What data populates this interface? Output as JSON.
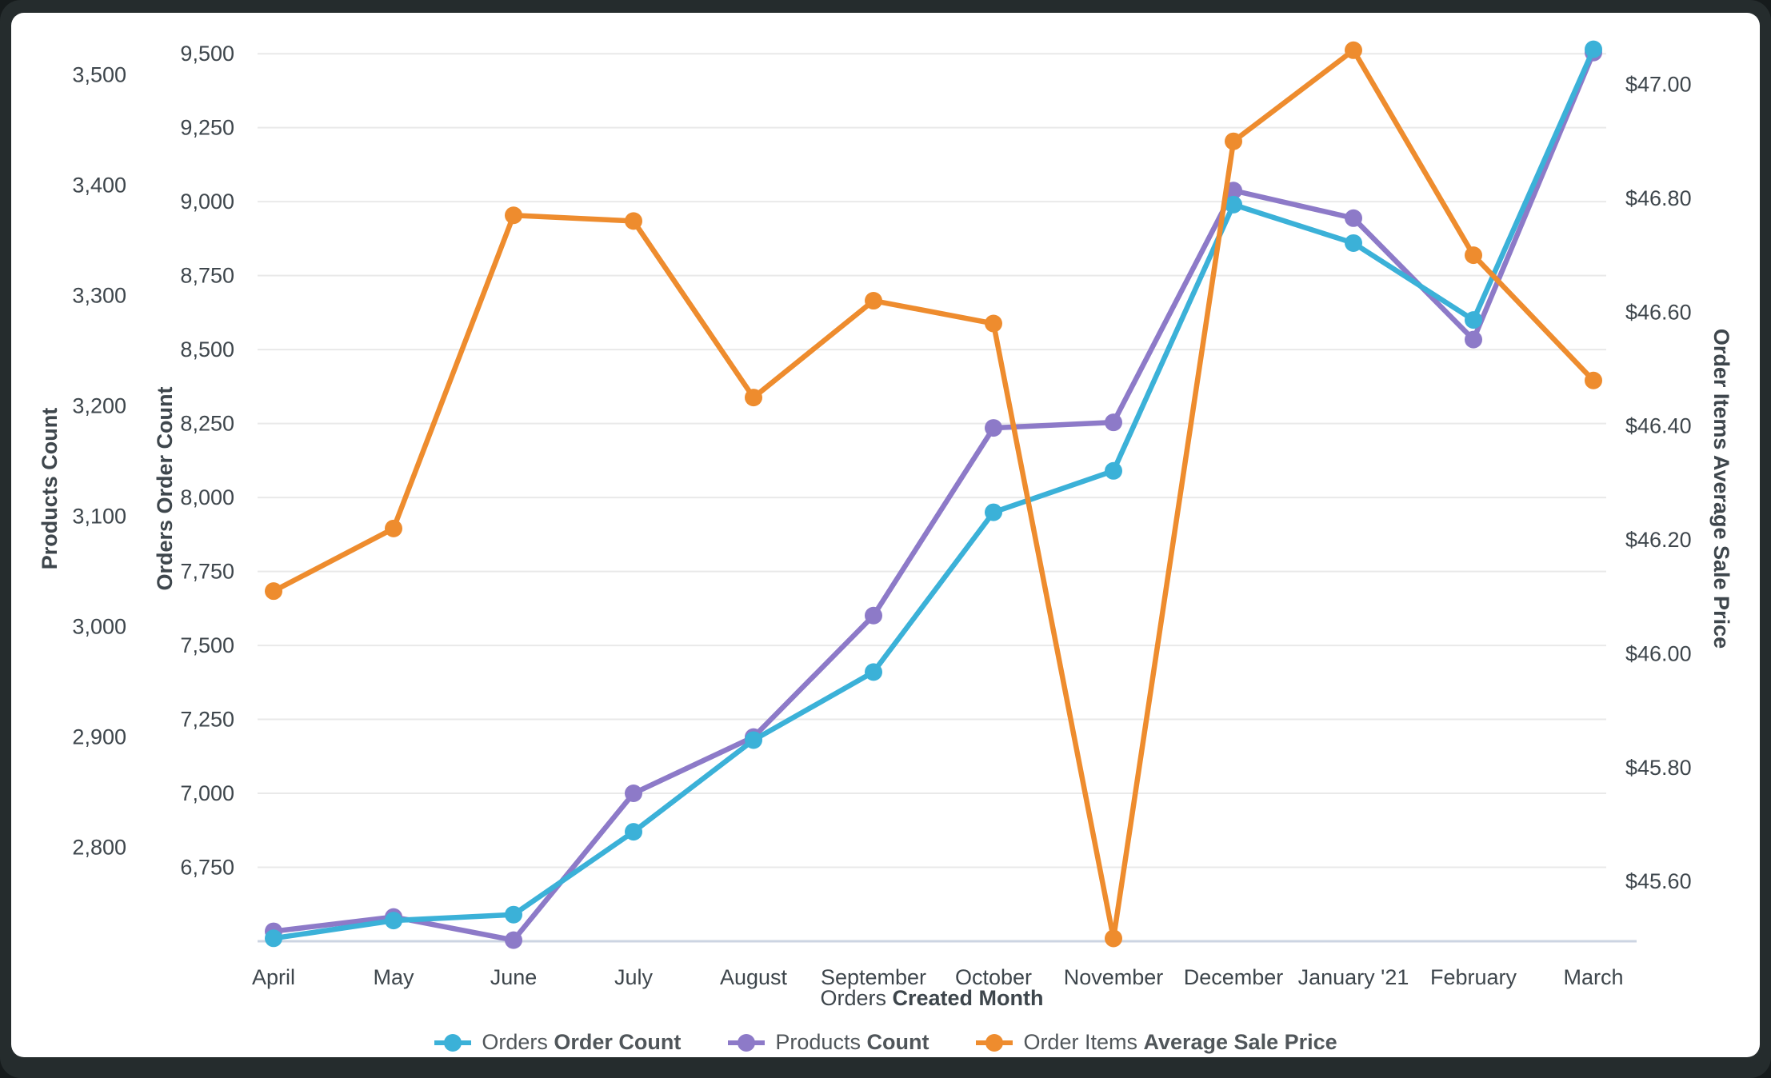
{
  "window": {
    "frame_color": "#252c2d",
    "card_color": "#ffffff"
  },
  "colors": {
    "grid": "#e9e9e9",
    "baseline": "#ccd4e2",
    "tick_text": "#3e464c",
    "legend_text": "#50565a",
    "orders": "#3bb1d8",
    "products": "#8d7ac8",
    "price": "#ee8c2e"
  },
  "chart_data": {
    "type": "line",
    "title": "",
    "legend_position": "bottom",
    "grid": true,
    "categories": [
      "April",
      "May",
      "June",
      "July",
      "August",
      "September",
      "October",
      "November",
      "December",
      "January '21",
      "February",
      "March"
    ],
    "x_axis_title": {
      "prefix": "Orders",
      "bold": "Created Month"
    },
    "series": [
      {
        "id": "orders",
        "legend_prefix": "Orders",
        "legend_bold": "Order Count",
        "color": "#3bb1d8",
        "axis": "orders",
        "values": [
          6510,
          6570,
          6590,
          6870,
          7180,
          7410,
          7950,
          8090,
          8990,
          8860,
          8600,
          9515
        ]
      },
      {
        "id": "products",
        "legend_prefix": "Products",
        "legend_bold": "Count",
        "color": "#8d7ac8",
        "axis": "products",
        "values": [
          2724,
          2737,
          2716,
          2849,
          2900,
          3010,
          3180,
          3185,
          3395,
          3370,
          3260,
          3520
        ]
      },
      {
        "id": "price",
        "legend_prefix": "Order Items",
        "legend_bold": "Average Sale Price",
        "color": "#ee8c2e",
        "axis": "price",
        "values": [
          46.11,
          46.22,
          46.77,
          46.76,
          46.45,
          46.62,
          46.58,
          45.5,
          46.9,
          47.06,
          46.7,
          46.48
        ]
      }
    ],
    "draw_order": [
      "products",
      "orders",
      "price"
    ],
    "axes": {
      "products": {
        "title": "Products Count",
        "side": "left-outer",
        "range": [
          2715,
          3535
        ],
        "ticks": [
          2800,
          2900,
          3000,
          3100,
          3200,
          3300,
          3400,
          3500
        ],
        "tick_labels": [
          "2,800",
          "2,900",
          "3,000",
          "3,100",
          "3,200",
          "3,300",
          "3,400",
          "3,500"
        ],
        "gridlines": false
      },
      "orders": {
        "title": "Orders Order Count",
        "side": "left-inner",
        "range": [
          6500,
          9560
        ],
        "ticks": [
          6750,
          7000,
          7250,
          7500,
          7750,
          8000,
          8250,
          8500,
          8750,
          9000,
          9250,
          9500
        ],
        "tick_labels": [
          "6,750",
          "7,000",
          "7,250",
          "7,500",
          "7,750",
          "8,000",
          "8,250",
          "8,500",
          "8,750",
          "9,000",
          "9,250",
          "9,500"
        ],
        "gridlines": true
      },
      "price": {
        "title": "Order Items Average Sale Price",
        "side": "right",
        "range": [
          45.495,
          47.085
        ],
        "ticks": [
          45.6,
          45.8,
          46.0,
          46.2,
          46.4,
          46.6,
          46.8,
          47.0
        ],
        "tick_labels": [
          "$45.60",
          "$45.80",
          "$46.00",
          "$46.20",
          "$46.40",
          "$46.60",
          "$46.80",
          "$47.00"
        ],
        "gridlines": false
      }
    }
  }
}
